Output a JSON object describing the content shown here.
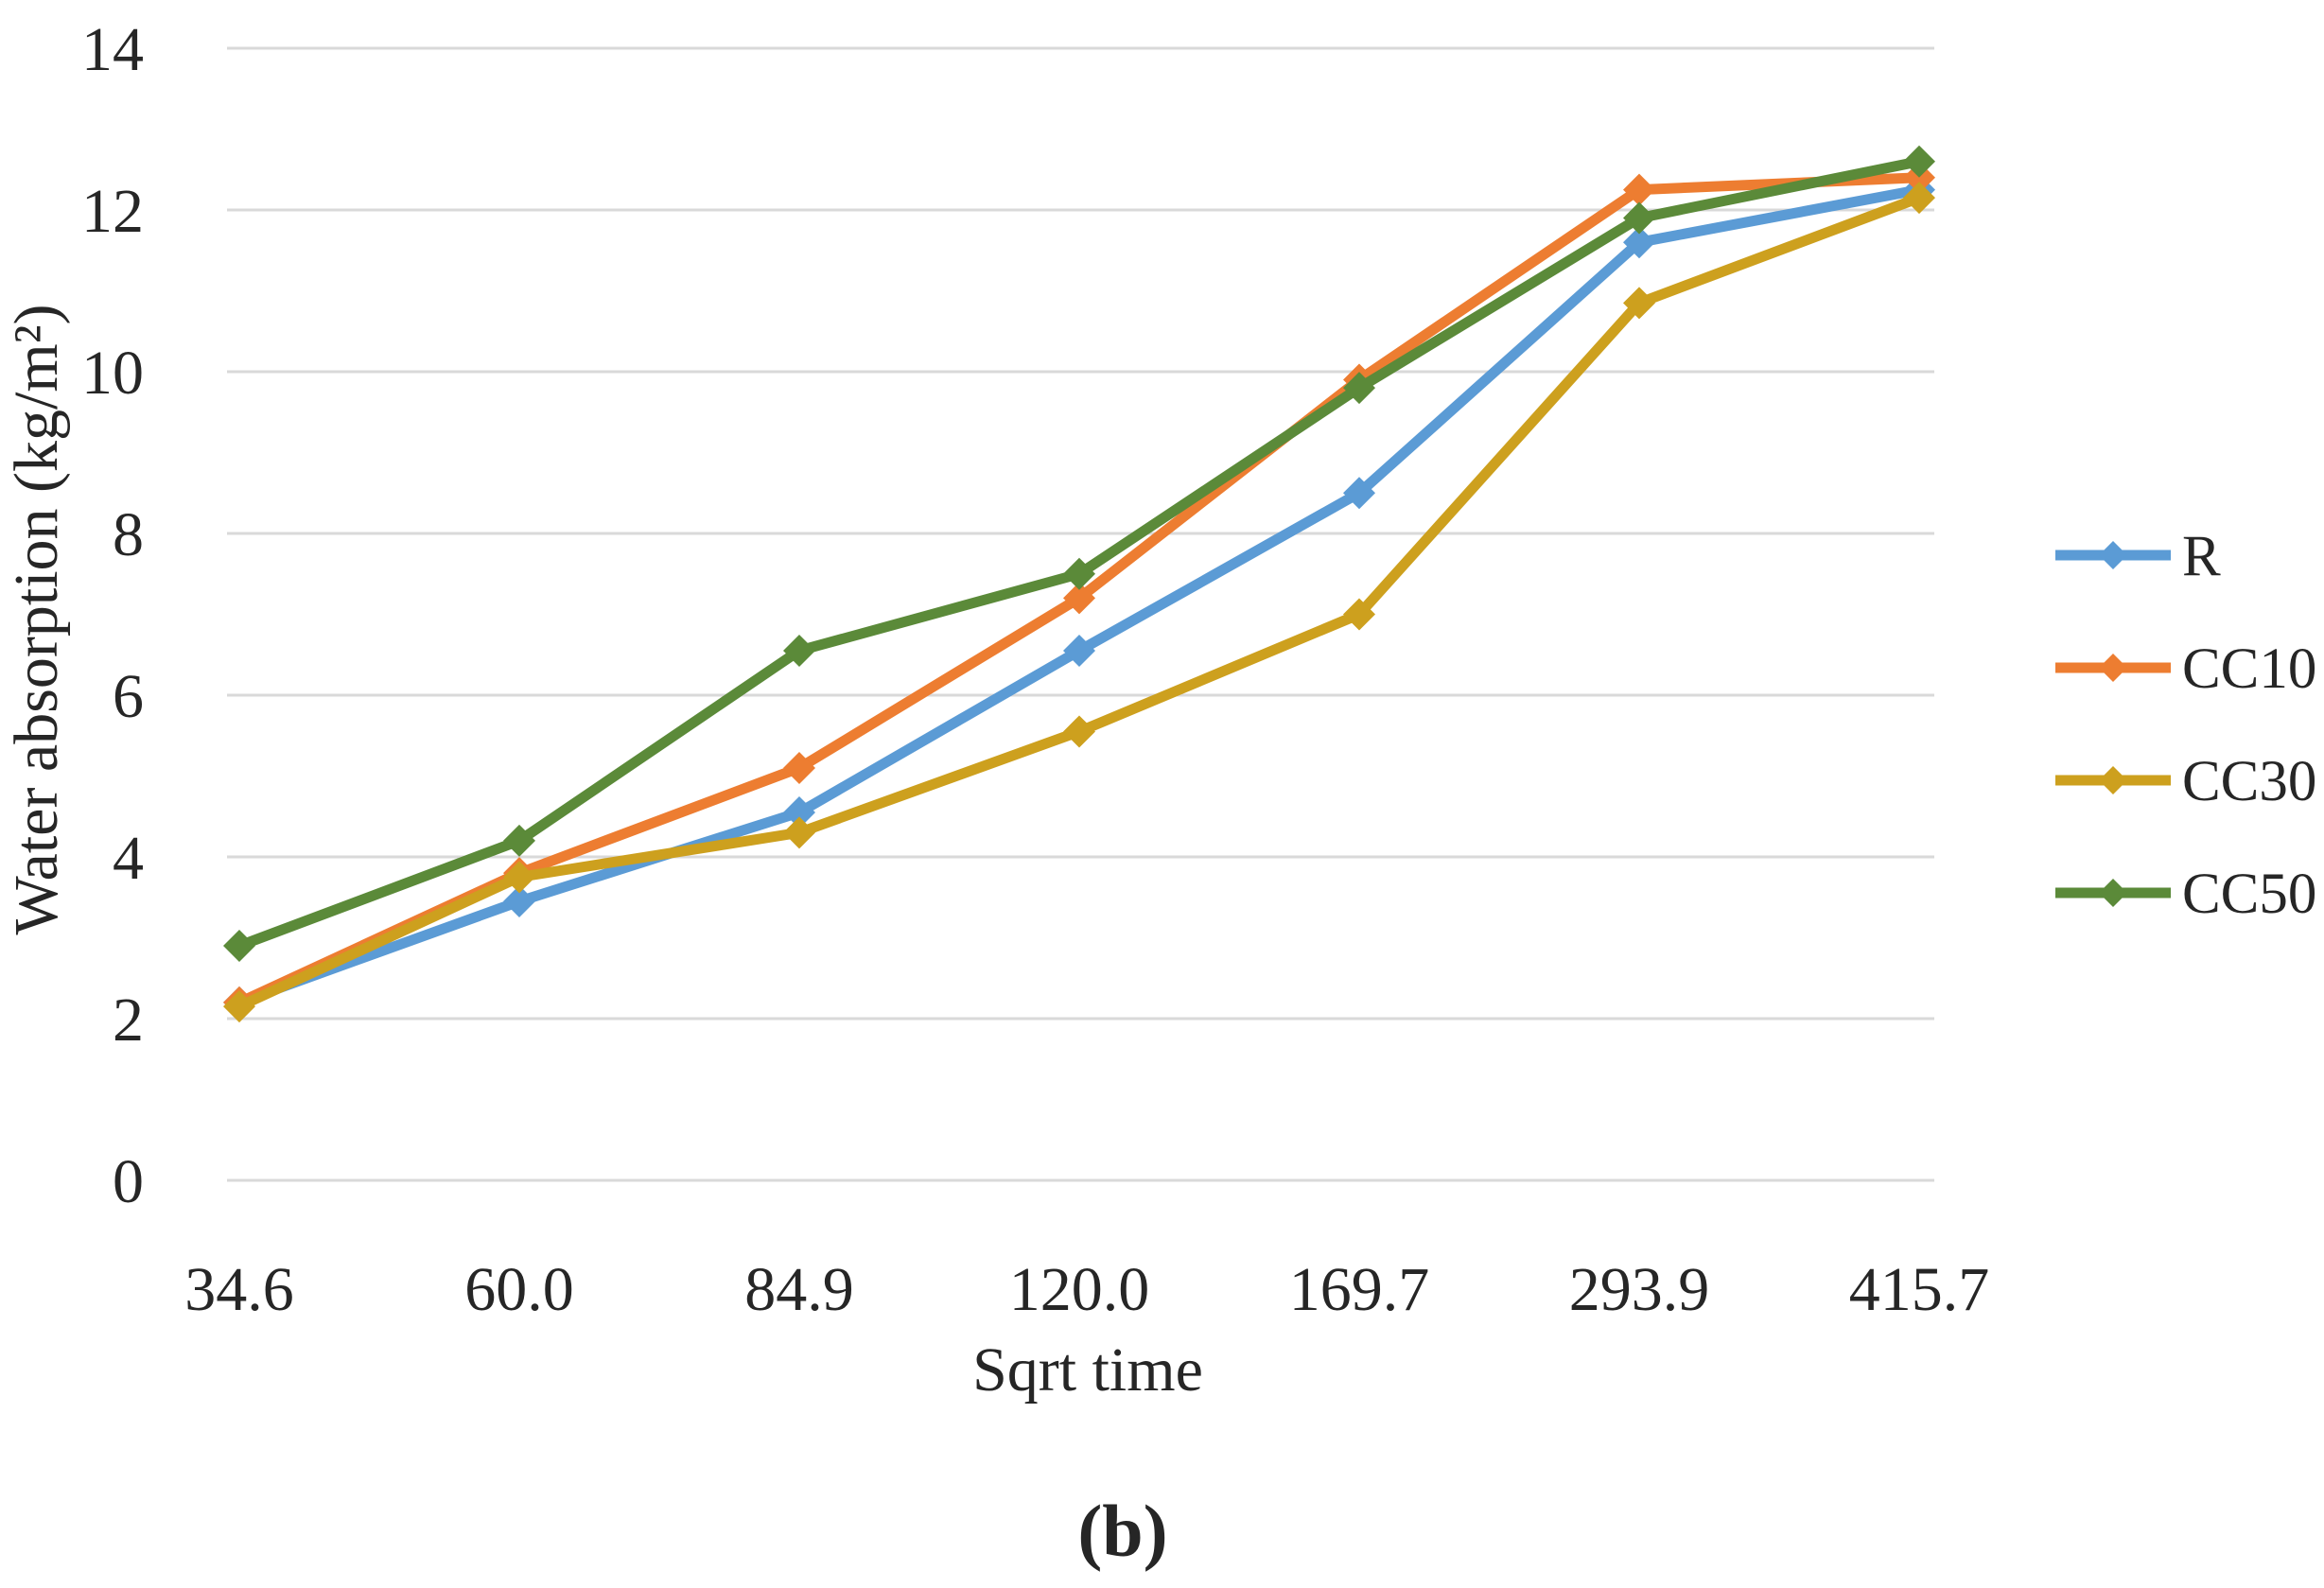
{
  "chart_data": {
    "type": "line",
    "title": "",
    "xlabel": "Sqrt time",
    "ylabel": "Water absorption (kg/m²)",
    "categories": [
      "34.6",
      "60.0",
      "84.9",
      "120.0",
      "169.7",
      "293.9",
      "415.7"
    ],
    "yticks": [
      "0",
      "2",
      "4",
      "6",
      "8",
      "10",
      "12",
      "14"
    ],
    "ylim": [
      0,
      14
    ],
    "ytick_step": 2,
    "grid": true,
    "legend_position": "right",
    "marker": "diamond",
    "series": [
      {
        "name": "R",
        "color": "#5B9BD5",
        "values": [
          2.2,
          3.45,
          4.55,
          6.55,
          8.5,
          11.6,
          12.25
        ]
      },
      {
        "name": "CC10",
        "color": "#ED7D31",
        "values": [
          2.2,
          3.8,
          5.1,
          7.2,
          9.9,
          12.25,
          12.4
        ]
      },
      {
        "name": "CC30",
        "color": "#CDA01E",
        "values": [
          2.15,
          3.75,
          4.3,
          5.55,
          7.0,
          10.85,
          12.15
        ]
      },
      {
        "name": "CC50",
        "color": "#5B8A39",
        "values": [
          2.9,
          4.2,
          6.55,
          7.5,
          9.8,
          11.9,
          12.6
        ]
      }
    ]
  },
  "caption": "(b)",
  "colors": {
    "gridline": "#D9D9D9",
    "text": "#262626",
    "background": "#FFFFFF"
  }
}
